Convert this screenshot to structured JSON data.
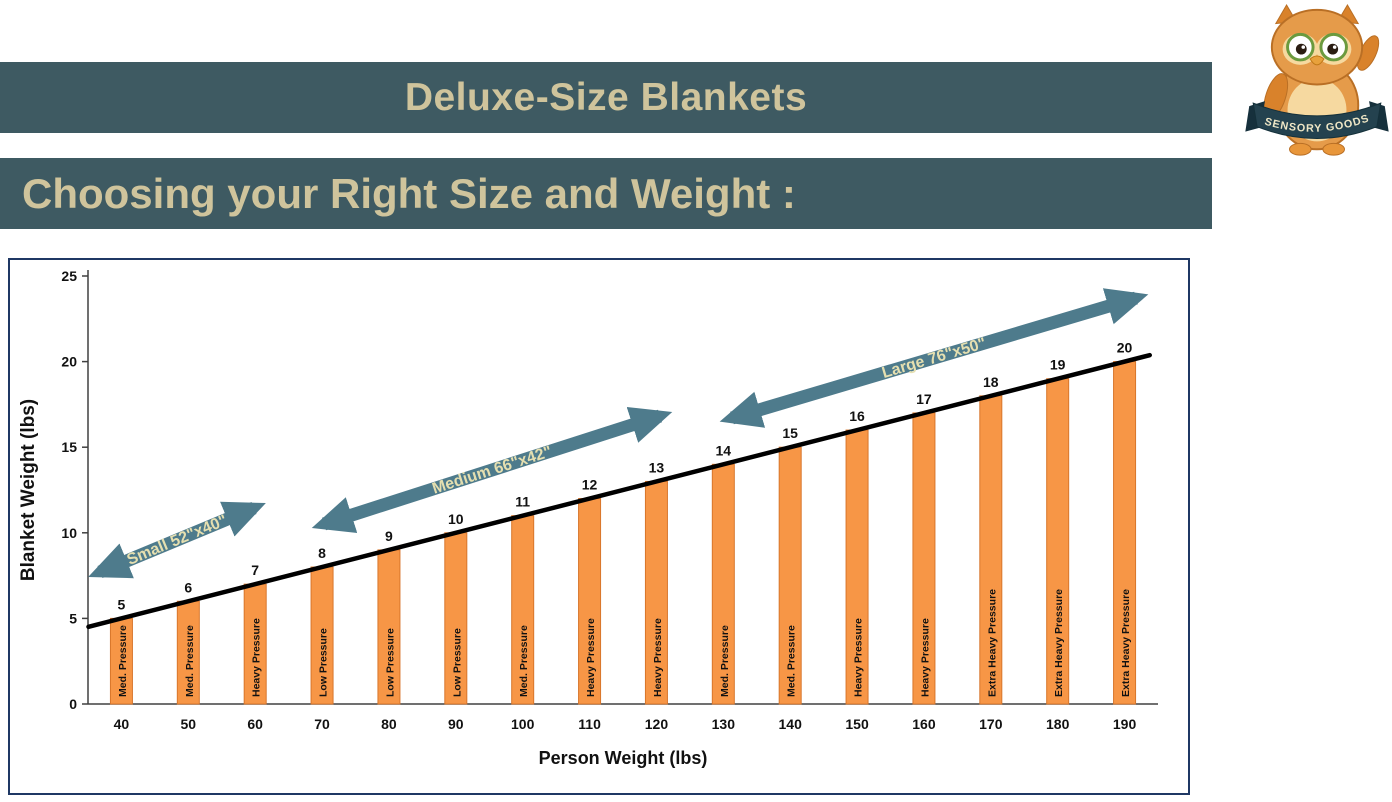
{
  "header": {
    "title": "Deluxe-Size Blankets",
    "subtitle": "Choosing your Right Size and Weight :"
  },
  "logo": {
    "banner_text": "SENSORY GOODS"
  },
  "colors": {
    "banner_bg": "#3e5a62",
    "banner_text": "#cfc49c",
    "bar": "#f79646",
    "bar_border": "#d8762b",
    "arrow": "#4e7b8c",
    "arrow_label": "#e5dfb0",
    "trend_line": "#000000",
    "chart_border": "#1f3864",
    "axis": "#404040",
    "text": "#111111"
  },
  "chart_data": {
    "type": "bar",
    "title": "",
    "xlabel": "Person Weight (lbs)",
    "ylabel": "Blanket Weight (lbs)",
    "ylim": [
      0,
      25
    ],
    "yticks": [
      0,
      5,
      10,
      15,
      20,
      25
    ],
    "categories": [
      40,
      50,
      60,
      70,
      80,
      90,
      100,
      110,
      120,
      130,
      140,
      150,
      160,
      170,
      180,
      190
    ],
    "values": [
      5,
      6,
      7,
      8,
      9,
      10,
      11,
      12,
      13,
      14,
      15,
      16,
      17,
      18,
      19,
      20
    ],
    "bar_labels": [
      "Med. Pressure",
      "Med. Pressure",
      "Heavy Pressure",
      "Low Pressure",
      "Low Pressure",
      "Low Pressure",
      "Med. Pressure",
      "Heavy Pressure",
      "Heavy Pressure",
      "Med. Pressure",
      "Med. Pressure",
      "Heavy Pressure",
      "Heavy Pressure",
      "Extra Heavy Pressure",
      "Extra Heavy Pressure",
      "Extra Heavy Pressure"
    ],
    "value_labels_shown": true,
    "trend_line": true,
    "grid": false,
    "legend": null,
    "annotations": [
      {
        "label": "Small 52\"x40\""
      },
      {
        "label": "Medium 66\"x42\""
      },
      {
        "label": "Large 76\"x50\""
      }
    ]
  }
}
